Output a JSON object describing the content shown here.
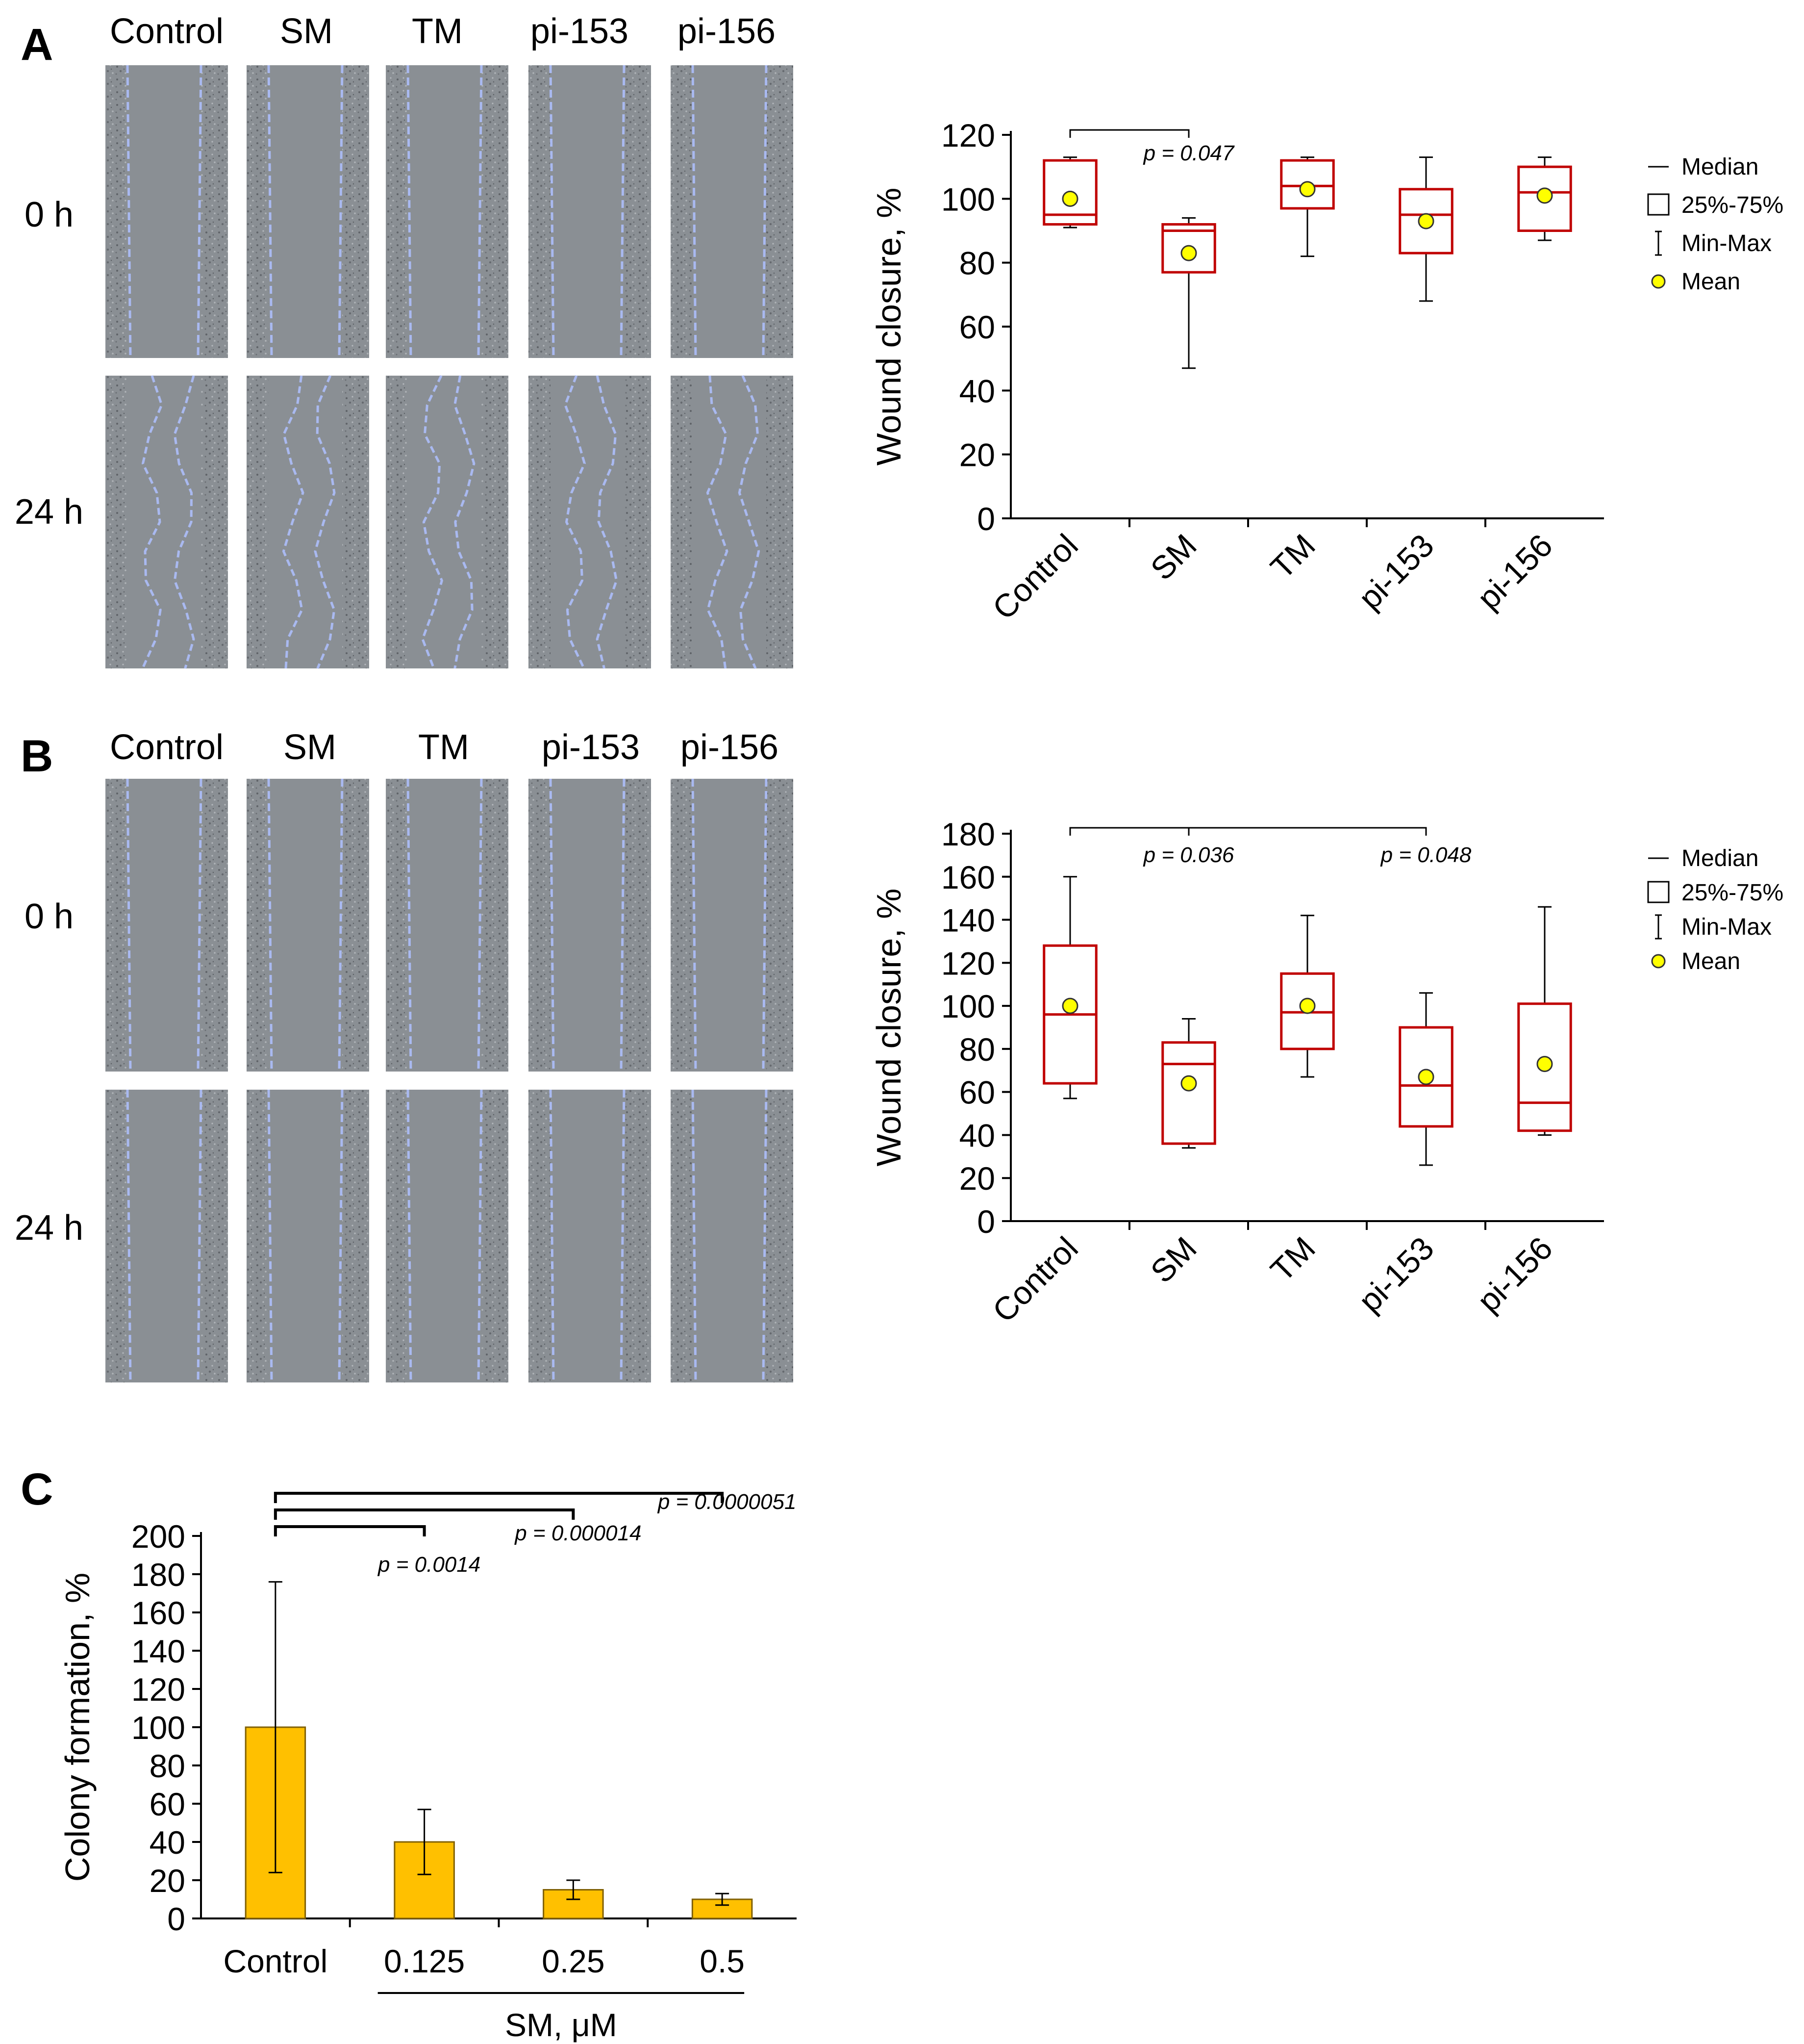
{
  "panels": {
    "A": {
      "letter": "A",
      "microscopy": {
        "columns": [
          "Control",
          "SM",
          "TM",
          "pi-153",
          "pi-156"
        ],
        "rows": [
          "0 h",
          "24 h"
        ]
      }
    },
    "B": {
      "letter": "B",
      "microscopy": {
        "columns": [
          "Control",
          "SM",
          "TM",
          "pi-153",
          "pi-156"
        ],
        "rows": [
          "0 h",
          "24 h"
        ]
      }
    },
    "C": {
      "letter": "C"
    }
  },
  "legend": {
    "median": "Median",
    "box": "25%-75%",
    "range": "Min-Max",
    "mean": "Mean"
  },
  "colors": {
    "box": "#c00000",
    "mean_fill": "#ffff00",
    "bar_fill": "#ffc000",
    "bar_stroke": "#806000",
    "micro_bg": "#8a8f94",
    "micro_cells": "#6e7277",
    "micro_line": "#a9b9f0"
  },
  "chart_data": [
    {
      "type": "box",
      "panel": "A",
      "ylabel": "Wound closure, %",
      "ylim": [
        0,
        120
      ],
      "yticks": [
        0,
        20,
        40,
        60,
        80,
        100,
        120
      ],
      "categories": [
        "Control",
        "SM",
        "TM",
        "pi-153",
        "pi-156"
      ],
      "boxes": [
        {
          "min": 91,
          "q1": 92,
          "median": 95,
          "q3": 112,
          "max": 113,
          "mean": 100
        },
        {
          "min": 47,
          "q1": 77,
          "median": 90,
          "q3": 92,
          "max": 94,
          "mean": 83
        },
        {
          "min": 82,
          "q1": 97,
          "median": 104,
          "q3": 112,
          "max": 113,
          "mean": 103
        },
        {
          "min": 68,
          "q1": 83,
          "median": 95,
          "q3": 103,
          "max": 113,
          "mean": 93
        },
        {
          "min": 87,
          "q1": 90,
          "median": 102,
          "q3": 110,
          "max": 113,
          "mean": 101
        }
      ],
      "significance": [
        {
          "from": 0,
          "to": 1,
          "label": "p = 0.047"
        }
      ],
      "legend_position": "right"
    },
    {
      "type": "box",
      "panel": "B",
      "ylabel": "Wound closure, %",
      "ylim": [
        0,
        180
      ],
      "yticks": [
        0,
        20,
        40,
        60,
        80,
        100,
        120,
        140,
        160,
        180
      ],
      "categories": [
        "Control",
        "SM",
        "TM",
        "pi-153",
        "pi-156"
      ],
      "boxes": [
        {
          "min": 57,
          "q1": 64,
          "median": 96,
          "q3": 128,
          "max": 160,
          "mean": 100
        },
        {
          "min": 34,
          "q1": 36,
          "median": 73,
          "q3": 83,
          "max": 94,
          "mean": 64
        },
        {
          "min": 67,
          "q1": 80,
          "median": 97,
          "q3": 115,
          "max": 142,
          "mean": 100
        },
        {
          "min": 26,
          "q1": 44,
          "median": 63,
          "q3": 90,
          "max": 106,
          "mean": 67
        },
        {
          "min": 40,
          "q1": 42,
          "median": 55,
          "q3": 101,
          "max": 146,
          "mean": 73
        }
      ],
      "significance": [
        {
          "from": 0,
          "to": 1,
          "label": "p = 0.036"
        },
        {
          "from": 0,
          "to": 3,
          "label": "p = 0.048"
        }
      ],
      "legend_position": "right"
    },
    {
      "type": "bar",
      "panel": "C",
      "ylabel": "Colony formation, %",
      "ylim": [
        0,
        200
      ],
      "yticks": [
        0,
        20,
        40,
        60,
        80,
        100,
        120,
        140,
        160,
        180,
        200
      ],
      "categories": [
        "Control",
        "0.125",
        "0.25",
        "0.5"
      ],
      "values": [
        100,
        40,
        15,
        10
      ],
      "errors": [
        76,
        17,
        5,
        3
      ],
      "group_label": "SM, μM",
      "significance": [
        {
          "from": 0,
          "to": 1,
          "label": "p = 0.0014"
        },
        {
          "from": 0,
          "to": 2,
          "label": "p = 0.000014"
        },
        {
          "from": 0,
          "to": 3,
          "label": "p = 0.0000051"
        }
      ]
    }
  ]
}
